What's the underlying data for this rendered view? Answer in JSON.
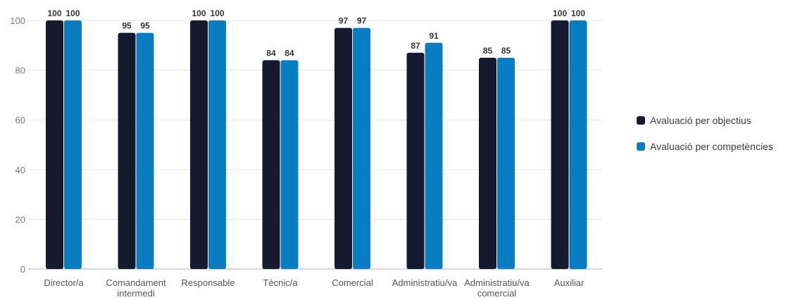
{
  "chart_data": {
    "type": "bar",
    "categories": [
      [
        "Director/a"
      ],
      [
        "Comandament",
        "intermedi"
      ],
      [
        "Responsable"
      ],
      [
        "Tècnic/a"
      ],
      [
        "Comercial"
      ],
      [
        "Administratiu/va"
      ],
      [
        "Administratiu/va",
        "comercial"
      ],
      [
        "Auxiliar"
      ]
    ],
    "series": [
      {
        "name": "Avaluació per objectius",
        "color": "#161a2e",
        "values": [
          100,
          95,
          100,
          84,
          97,
          87,
          85,
          100
        ]
      },
      {
        "name": "Avaluació per competències",
        "color": "#0a7dc2",
        "values": [
          100,
          95,
          100,
          84,
          97,
          91,
          85,
          100
        ]
      }
    ],
    "ylim": [
      0,
      100
    ],
    "yticks": [
      0,
      20,
      40,
      60,
      80,
      100
    ],
    "grid": true,
    "legend_position": "right",
    "data_labels": true,
    "title": "",
    "xlabel": "",
    "ylabel": ""
  }
}
